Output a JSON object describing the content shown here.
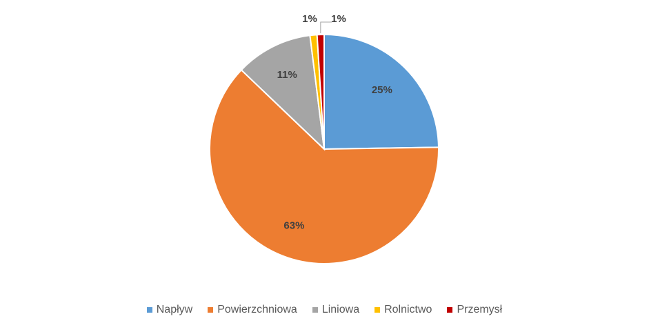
{
  "chart_data": {
    "type": "pie",
    "categories": [
      "Napływ",
      "Powierzchniowa",
      "Liniowa",
      "Rolnictwo",
      "Przemysł"
    ],
    "values": [
      25,
      63,
      11,
      1,
      1
    ],
    "value_labels": [
      "25%",
      "63%",
      "11%",
      "1%",
      "1%"
    ],
    "colors": [
      "#5b9bd5",
      "#ed7d31",
      "#a5a5a5",
      "#ffc000",
      "#c00000"
    ],
    "legend": "bottom"
  }
}
